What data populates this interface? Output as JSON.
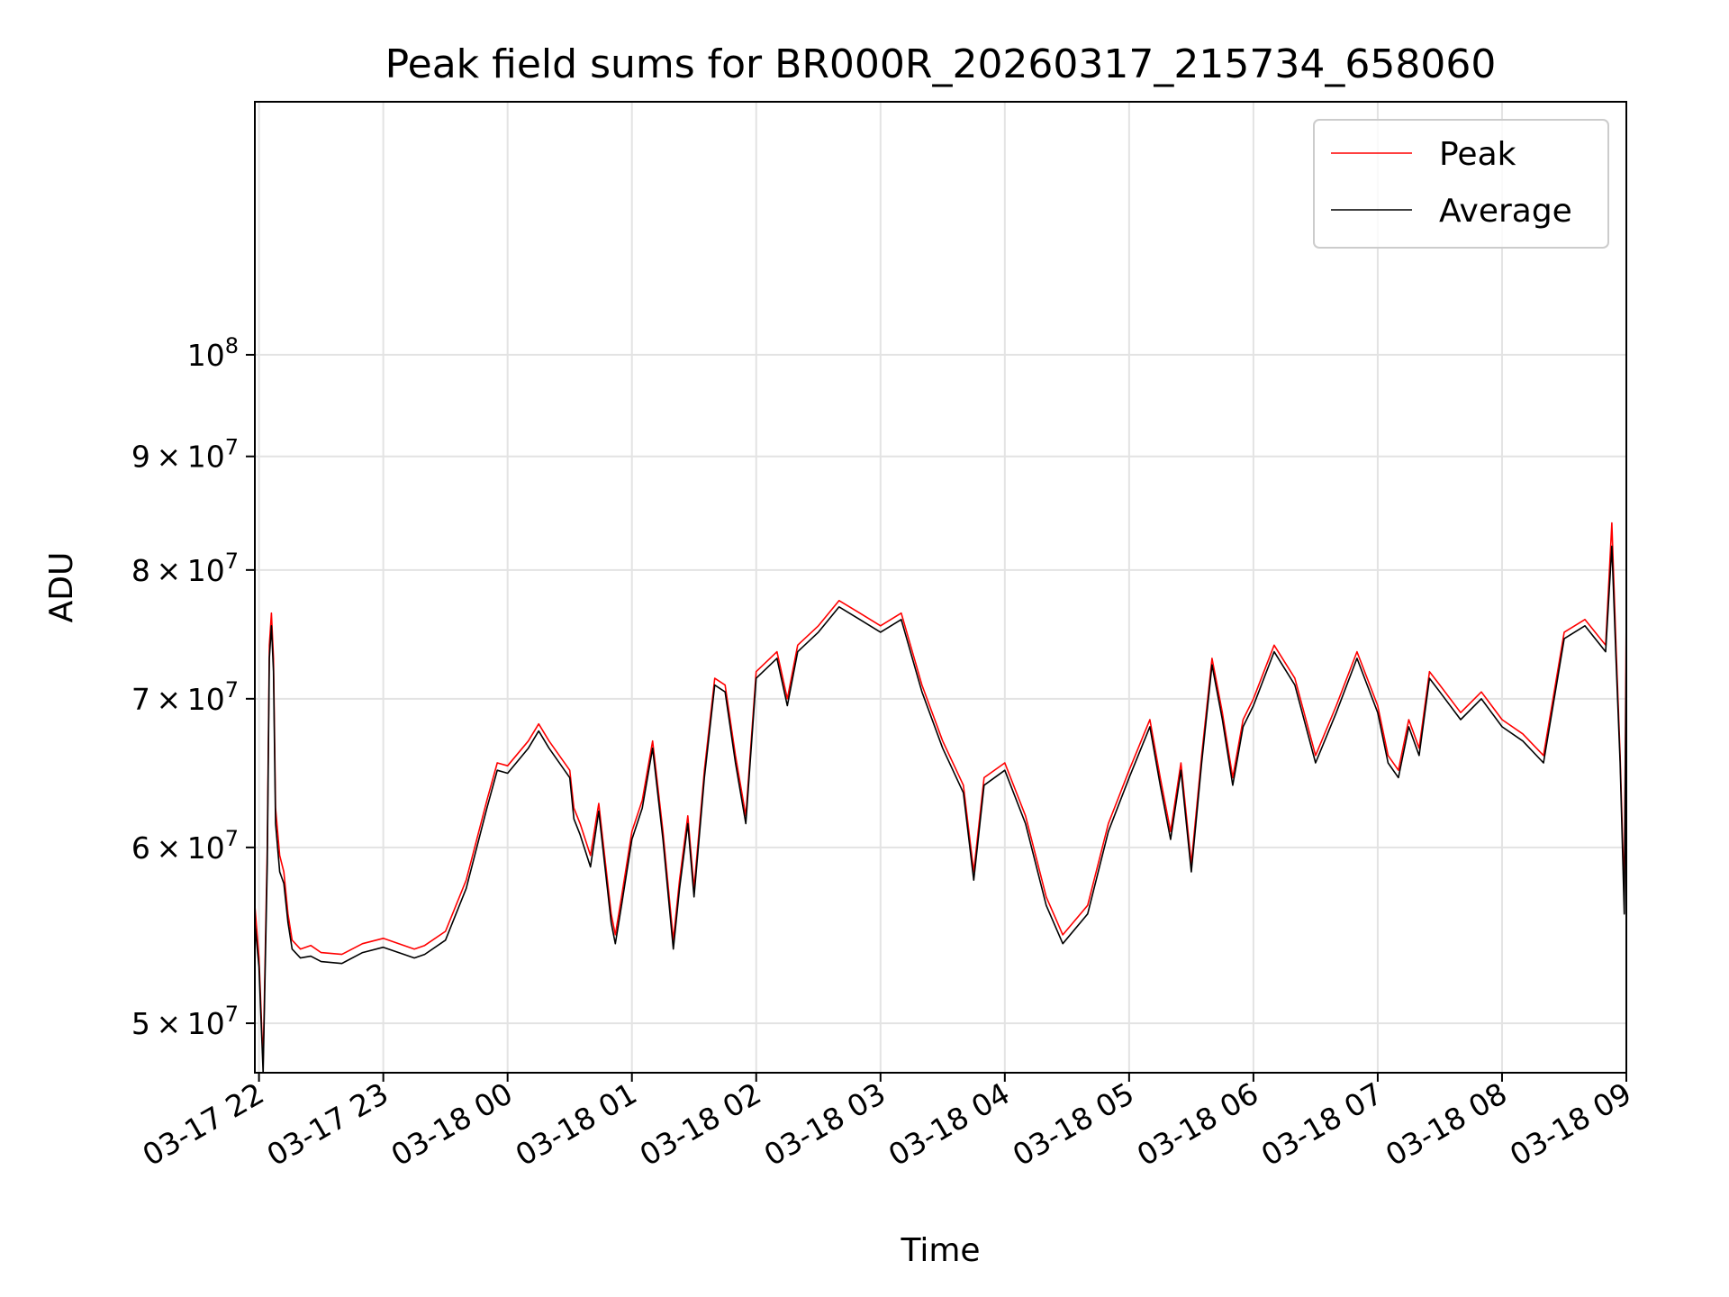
{
  "chart_data": {
    "type": "line",
    "title": "Peak field sums for BR000R_20260317_215734_658060",
    "xlabel": "Time",
    "ylabel": "ADU",
    "yscale": "log",
    "grid": true,
    "legend_position": "top-right",
    "xlim": [
      "2026-03-17 21:58",
      "2026-03-18 09:00"
    ],
    "ylim": [
      47500000,
      130000000
    ],
    "x_ticks": [
      {
        "value": "2026-03-17 22:00",
        "label": "03-17 22"
      },
      {
        "value": "2026-03-17 23:00",
        "label": "03-17 23"
      },
      {
        "value": "2026-03-18 00:00",
        "label": "03-18 00"
      },
      {
        "value": "2026-03-18 01:00",
        "label": "03-18 01"
      },
      {
        "value": "2026-03-18 02:00",
        "label": "03-18 02"
      },
      {
        "value": "2026-03-18 03:00",
        "label": "03-18 03"
      },
      {
        "value": "2026-03-18 04:00",
        "label": "03-18 04"
      },
      {
        "value": "2026-03-18 05:00",
        "label": "03-18 05"
      },
      {
        "value": "2026-03-18 06:00",
        "label": "03-18 06"
      },
      {
        "value": "2026-03-18 07:00",
        "label": "03-18 07"
      },
      {
        "value": "2026-03-18 08:00",
        "label": "03-18 08"
      },
      {
        "value": "2026-03-18 09:00",
        "label": "03-18 09"
      }
    ],
    "y_ticks": [
      {
        "value": 50000000,
        "mantissa": "5",
        "exponent": "7"
      },
      {
        "value": 60000000,
        "mantissa": "6",
        "exponent": "7"
      },
      {
        "value": 70000000,
        "mantissa": "7",
        "exponent": "7"
      },
      {
        "value": 80000000,
        "mantissa": "8",
        "exponent": "7"
      },
      {
        "value": 90000000,
        "mantissa": "9",
        "exponent": "7"
      },
      {
        "value": 100000000,
        "mantissa": "",
        "exponent": "8"
      }
    ],
    "y_tick_base": "10",
    "y_tick_times": "×",
    "series": [
      {
        "name": "Peak",
        "color": "#ff0000",
        "x": [
          "2026-03-17 21:58",
          "2026-03-17 22:00",
          "2026-03-17 22:02",
          "2026-03-17 22:04",
          "2026-03-17 22:05",
          "2026-03-17 22:06",
          "2026-03-17 22:07",
          "2026-03-17 22:08",
          "2026-03-17 22:10",
          "2026-03-17 22:12",
          "2026-03-17 22:14",
          "2026-03-17 22:16",
          "2026-03-17 22:20",
          "2026-03-17 22:25",
          "2026-03-17 22:30",
          "2026-03-17 22:40",
          "2026-03-17 22:50",
          "2026-03-17 23:00",
          "2026-03-17 23:10",
          "2026-03-17 23:15",
          "2026-03-17 23:20",
          "2026-03-17 23:30",
          "2026-03-17 23:40",
          "2026-03-17 23:50",
          "2026-03-17 23:55",
          "2026-03-18 00:00",
          "2026-03-18 00:10",
          "2026-03-18 00:15",
          "2026-03-18 00:20",
          "2026-03-18 00:30",
          "2026-03-18 00:32",
          "2026-03-18 00:35",
          "2026-03-18 00:40",
          "2026-03-18 00:44",
          "2026-03-18 00:50",
          "2026-03-18 00:52",
          "2026-03-18 00:55",
          "2026-03-18 01:00",
          "2026-03-18 01:05",
          "2026-03-18 01:10",
          "2026-03-18 01:15",
          "2026-03-18 01:20",
          "2026-03-18 01:23",
          "2026-03-18 01:27",
          "2026-03-18 01:30",
          "2026-03-18 01:35",
          "2026-03-18 01:40",
          "2026-03-18 01:45",
          "2026-03-18 01:50",
          "2026-03-18 01:55",
          "2026-03-18 02:00",
          "2026-03-18 02:10",
          "2026-03-18 02:15",
          "2026-03-18 02:20",
          "2026-03-18 02:30",
          "2026-03-18 02:40",
          "2026-03-18 02:50",
          "2026-03-18 03:00",
          "2026-03-18 03:10",
          "2026-03-18 03:20",
          "2026-03-18 03:30",
          "2026-03-18 03:40",
          "2026-03-18 03:45",
          "2026-03-18 03:50",
          "2026-03-18 04:00",
          "2026-03-18 04:10",
          "2026-03-18 04:20",
          "2026-03-18 04:28",
          "2026-03-18 04:40",
          "2026-03-18 04:50",
          "2026-03-18 05:00",
          "2026-03-18 05:10",
          "2026-03-18 05:15",
          "2026-03-18 05:20",
          "2026-03-18 05:25",
          "2026-03-18 05:30",
          "2026-03-18 05:35",
          "2026-03-18 05:40",
          "2026-03-18 05:45",
          "2026-03-18 05:50",
          "2026-03-18 05:55",
          "2026-03-18 06:00",
          "2026-03-18 06:10",
          "2026-03-18 06:20",
          "2026-03-18 06:30",
          "2026-03-18 06:40",
          "2026-03-18 06:50",
          "2026-03-18 07:00",
          "2026-03-18 07:05",
          "2026-03-18 07:10",
          "2026-03-18 07:15",
          "2026-03-18 07:20",
          "2026-03-18 07:25",
          "2026-03-18 07:30",
          "2026-03-18 07:40",
          "2026-03-18 07:50",
          "2026-03-18 08:00",
          "2026-03-18 08:10",
          "2026-03-18 08:20",
          "2026-03-18 08:30",
          "2026-03-18 08:40",
          "2026-03-18 08:50",
          "2026-03-18 08:53",
          "2026-03-18 08:55",
          "2026-03-18 08:57",
          "2026-03-18 08:59",
          "2026-03-18 09:00"
        ],
        "y": [
          56500000,
          53500000,
          48000000,
          60000000,
          74000000,
          76500000,
          73000000,
          62500000,
          59500000,
          58500000,
          56000000,
          54500000,
          54000000,
          54200000,
          53800000,
          53700000,
          54300000,
          54600000,
          54200000,
          54000000,
          54200000,
          55000000,
          58000000,
          63000000,
          65500000,
          65300000,
          67000000,
          68200000,
          67000000,
          65000000,
          62500000,
          61500000,
          59500000,
          62800000,
          56000000,
          54800000,
          57000000,
          61000000,
          63000000,
          67000000,
          61000000,
          54500000,
          58000000,
          62000000,
          57500000,
          65000000,
          71500000,
          71000000,
          66000000,
          62000000,
          72000000,
          73500000,
          70000000,
          74000000,
          75500000,
          77500000,
          76500000,
          75500000,
          76500000,
          71000000,
          67000000,
          64000000,
          58500000,
          64500000,
          65500000,
          62000000,
          57000000,
          54800000,
          56500000,
          61500000,
          65000000,
          68500000,
          64500000,
          61000000,
          65500000,
          59000000,
          66000000,
          73000000,
          69000000,
          64500000,
          68500000,
          70000000,
          74000000,
          71500000,
          66000000,
          69500000,
          73500000,
          69500000,
          66000000,
          65000000,
          68500000,
          66500000,
          72000000,
          71000000,
          69000000,
          70500000,
          68500000,
          67500000,
          66000000,
          75000000,
          76000000,
          74000000,
          84000000,
          74000000,
          66000000,
          57000000,
          77000000
        ]
      },
      {
        "name": "Average",
        "color": "#000000",
        "x": [
          "2026-03-17 21:58",
          "2026-03-17 22:00",
          "2026-03-17 22:02",
          "2026-03-17 22:04",
          "2026-03-17 22:05",
          "2026-03-17 22:06",
          "2026-03-17 22:07",
          "2026-03-17 22:08",
          "2026-03-17 22:10",
          "2026-03-17 22:12",
          "2026-03-17 22:14",
          "2026-03-17 22:16",
          "2026-03-17 22:20",
          "2026-03-17 22:25",
          "2026-03-17 22:30",
          "2026-03-17 22:40",
          "2026-03-17 22:50",
          "2026-03-17 23:00",
          "2026-03-17 23:10",
          "2026-03-17 23:15",
          "2026-03-17 23:20",
          "2026-03-17 23:30",
          "2026-03-17 23:40",
          "2026-03-17 23:50",
          "2026-03-17 23:55",
          "2026-03-18 00:00",
          "2026-03-18 00:10",
          "2026-03-18 00:15",
          "2026-03-18 00:20",
          "2026-03-18 00:30",
          "2026-03-18 00:32",
          "2026-03-18 00:35",
          "2026-03-18 00:40",
          "2026-03-18 00:44",
          "2026-03-18 00:50",
          "2026-03-18 00:52",
          "2026-03-18 00:55",
          "2026-03-18 01:00",
          "2026-03-18 01:05",
          "2026-03-18 01:10",
          "2026-03-18 01:15",
          "2026-03-18 01:20",
          "2026-03-18 01:23",
          "2026-03-18 01:27",
          "2026-03-18 01:30",
          "2026-03-18 01:35",
          "2026-03-18 01:40",
          "2026-03-18 01:45",
          "2026-03-18 01:50",
          "2026-03-18 01:55",
          "2026-03-18 02:00",
          "2026-03-18 02:10",
          "2026-03-18 02:15",
          "2026-03-18 02:20",
          "2026-03-18 02:30",
          "2026-03-18 02:40",
          "2026-03-18 02:50",
          "2026-03-18 03:00",
          "2026-03-18 03:10",
          "2026-03-18 03:20",
          "2026-03-18 03:30",
          "2026-03-18 03:40",
          "2026-03-18 03:45",
          "2026-03-18 03:50",
          "2026-03-18 04:00",
          "2026-03-18 04:10",
          "2026-03-18 04:20",
          "2026-03-18 04:28",
          "2026-03-18 04:40",
          "2026-03-18 04:50",
          "2026-03-18 05:00",
          "2026-03-18 05:10",
          "2026-03-18 05:15",
          "2026-03-18 05:20",
          "2026-03-18 05:25",
          "2026-03-18 05:30",
          "2026-03-18 05:35",
          "2026-03-18 05:40",
          "2026-03-18 05:45",
          "2026-03-18 05:50",
          "2026-03-18 05:55",
          "2026-03-18 06:00",
          "2026-03-18 06:10",
          "2026-03-18 06:20",
          "2026-03-18 06:30",
          "2026-03-18 06:40",
          "2026-03-18 06:50",
          "2026-03-18 07:00",
          "2026-03-18 07:05",
          "2026-03-18 07:10",
          "2026-03-18 07:15",
          "2026-03-18 07:20",
          "2026-03-18 07:25",
          "2026-03-18 07:30",
          "2026-03-18 07:40",
          "2026-03-18 07:50",
          "2026-03-18 08:00",
          "2026-03-18 08:10",
          "2026-03-18 08:20",
          "2026-03-18 08:30",
          "2026-03-18 08:40",
          "2026-03-18 08:50",
          "2026-03-18 08:53",
          "2026-03-18 08:55",
          "2026-03-18 08:57",
          "2026-03-18 08:59",
          "2026-03-18 09:00"
        ],
        "y": [
          55500000,
          53000000,
          47500000,
          59000000,
          73000000,
          75500000,
          72000000,
          61500000,
          58500000,
          57800000,
          55500000,
          54000000,
          53500000,
          53600000,
          53300000,
          53200000,
          53800000,
          54100000,
          53700000,
          53500000,
          53700000,
          54500000,
          57500000,
          62500000,
          65000000,
          64800000,
          66500000,
          67700000,
          66500000,
          64500000,
          61800000,
          60800000,
          58800000,
          62300000,
          55500000,
          54300000,
          56500000,
          60500000,
          62500000,
          66500000,
          60500000,
          54000000,
          57500000,
          61500000,
          57000000,
          64500000,
          71000000,
          70500000,
          65500000,
          61500000,
          71500000,
          73000000,
          69500000,
          73500000,
          75000000,
          77000000,
          76000000,
          75000000,
          76000000,
          70500000,
          66500000,
          63500000,
          58000000,
          64000000,
          65000000,
          61500000,
          56500000,
          54300000,
          56000000,
          61000000,
          64500000,
          68000000,
          64000000,
          60500000,
          65000000,
          58500000,
          65500000,
          72500000,
          68500000,
          64000000,
          68000000,
          69500000,
          73500000,
          71000000,
          65500000,
          69000000,
          73000000,
          69000000,
          65500000,
          64500000,
          68000000,
          66000000,
          71500000,
          70500000,
          68500000,
          70000000,
          68000000,
          67000000,
          65500000,
          74500000,
          75500000,
          73500000,
          82000000,
          73000000,
          65500000,
          56000000,
          74000000
        ]
      }
    ]
  }
}
